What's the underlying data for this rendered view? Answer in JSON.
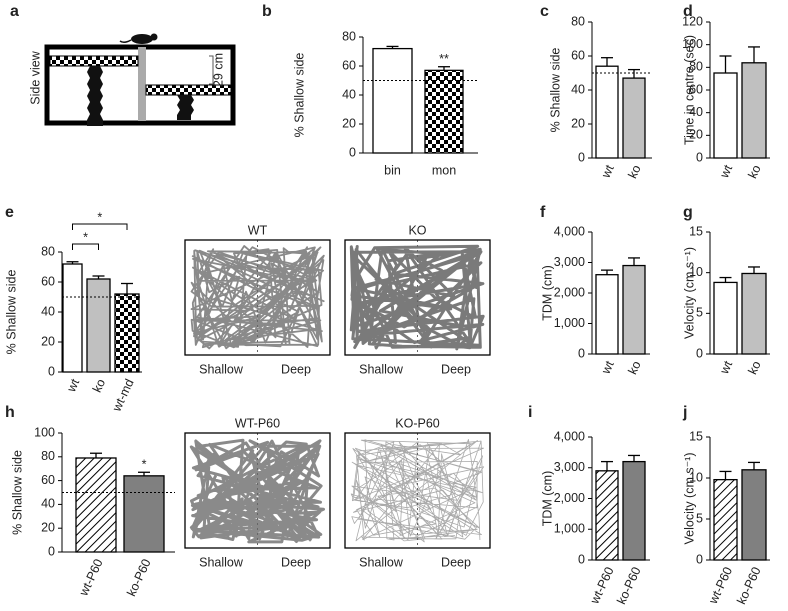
{
  "diagram": {
    "panel": "a",
    "side_label": "Side view",
    "scale_label": "29 cm"
  },
  "tracks": [
    {
      "title": "WT",
      "left": "Shallow",
      "right": "Deep"
    },
    {
      "title": "KO",
      "left": "Shallow",
      "right": "Deep"
    },
    {
      "title": "WT-P60",
      "left": "Shallow",
      "right": "Deep"
    },
    {
      "title": "KO-P60",
      "left": "Shallow",
      "right": "Deep"
    }
  ],
  "chart_data": [
    {
      "type": "bar",
      "panel": "b",
      "y_label": "% Shallow side",
      "categories": [
        "bin",
        "mon"
      ],
      "values": [
        72,
        57
      ],
      "errors": [
        1.5,
        2.5
      ],
      "fills": [
        "white",
        "checker"
      ],
      "ylim": [
        0,
        80
      ],
      "yticks": [
        0,
        20,
        40,
        60,
        80
      ],
      "reference_line": 50,
      "annotations": [
        {
          "text": "**",
          "from": 1,
          "to": 1
        }
      ]
    },
    {
      "type": "bar",
      "panel": "c",
      "y_label": "% Shallow side",
      "categories": [
        "wt",
        "ko"
      ],
      "values": [
        54,
        47
      ],
      "errors": [
        5,
        5
      ],
      "fills": [
        "white",
        "#c0c0c0"
      ],
      "ylim": [
        0,
        80
      ],
      "yticks": [
        0,
        20,
        40,
        60,
        80
      ],
      "reference_line": 50
    },
    {
      "type": "bar",
      "panel": "d",
      "y_label": "Time in centre (sec)",
      "categories": [
        "wt",
        "ko"
      ],
      "values": [
        75,
        84
      ],
      "errors": [
        15,
        14
      ],
      "fills": [
        "white",
        "#c0c0c0"
      ],
      "ylim": [
        0,
        120
      ],
      "yticks": [
        0,
        20,
        40,
        60,
        80,
        100,
        120
      ]
    },
    {
      "type": "bar",
      "panel": "e",
      "y_label": "% Shallow side",
      "categories": [
        "wt",
        "ko",
        "wt-md"
      ],
      "values": [
        72,
        62,
        52
      ],
      "errors": [
        1.5,
        2,
        7
      ],
      "fills": [
        "white",
        "#c0c0c0",
        "checker"
      ],
      "ylim": [
        0,
        80
      ],
      "yticks": [
        0,
        20,
        40,
        60,
        80
      ],
      "reference_line": 50,
      "annotations": [
        {
          "text": "*",
          "from": 0,
          "to": 1
        },
        {
          "text": "*",
          "from": 0,
          "to": 2
        }
      ]
    },
    {
      "type": "bar",
      "panel": "f",
      "y_label": "TDM (cm)",
      "categories": [
        "wt",
        "ko"
      ],
      "values": [
        2600,
        2900
      ],
      "errors": [
        150,
        250
      ],
      "fills": [
        "white",
        "#c0c0c0"
      ],
      "ylim": [
        0,
        4000
      ],
      "yticks": [
        0,
        {
          "value": 1000,
          "label": "1,000"
        },
        {
          "value": 2000,
          "label": "2,000"
        },
        {
          "value": 3000,
          "label": "3,000"
        },
        {
          "value": 4000,
          "label": "4,000"
        }
      ]
    },
    {
      "type": "bar",
      "panel": "g",
      "y_label": "Velocity (cm s⁻¹)",
      "categories": [
        "wt",
        "ko"
      ],
      "values": [
        8.8,
        9.9
      ],
      "errors": [
        0.6,
        0.8
      ],
      "fills": [
        "white",
        "#c0c0c0"
      ],
      "ylim": [
        0,
        15
      ],
      "yticks": [
        0,
        5,
        10,
        15
      ]
    },
    {
      "type": "bar",
      "panel": "h",
      "y_label": "% Shallow side",
      "categories": [
        "wt-P60",
        "ko-P60"
      ],
      "values": [
        79,
        64
      ],
      "errors": [
        4,
        3
      ],
      "fills": [
        "hatch",
        "#808080"
      ],
      "ylim": [
        0,
        100
      ],
      "yticks": [
        0,
        20,
        40,
        60,
        80,
        100
      ],
      "reference_line": 50,
      "annotations": [
        {
          "text": "*",
          "from": 1,
          "to": 1
        }
      ]
    },
    {
      "type": "bar",
      "panel": "i",
      "y_label": "TDM (cm)",
      "categories": [
        "wt-P60",
        "ko-P60"
      ],
      "values": [
        2900,
        3200
      ],
      "errors": [
        300,
        200
      ],
      "fills": [
        "hatch",
        "#808080"
      ],
      "ylim": [
        0,
        4000
      ],
      "yticks": [
        0,
        {
          "value": 1000,
          "label": "1,000"
        },
        {
          "value": 2000,
          "label": "2,000"
        },
        {
          "value": 3000,
          "label": "3,000"
        },
        {
          "value": 4000,
          "label": "4,000"
        }
      ]
    },
    {
      "type": "bar",
      "panel": "j",
      "y_label": "Velocity (cm s⁻¹)",
      "categories": [
        "wt-P60",
        "ko-P60"
      ],
      "values": [
        9.8,
        11
      ],
      "errors": [
        1,
        0.9
      ],
      "fills": [
        "hatch",
        "#808080"
      ],
      "ylim": [
        0,
        15
      ],
      "yticks": [
        0,
        5,
        10,
        15
      ]
    }
  ]
}
